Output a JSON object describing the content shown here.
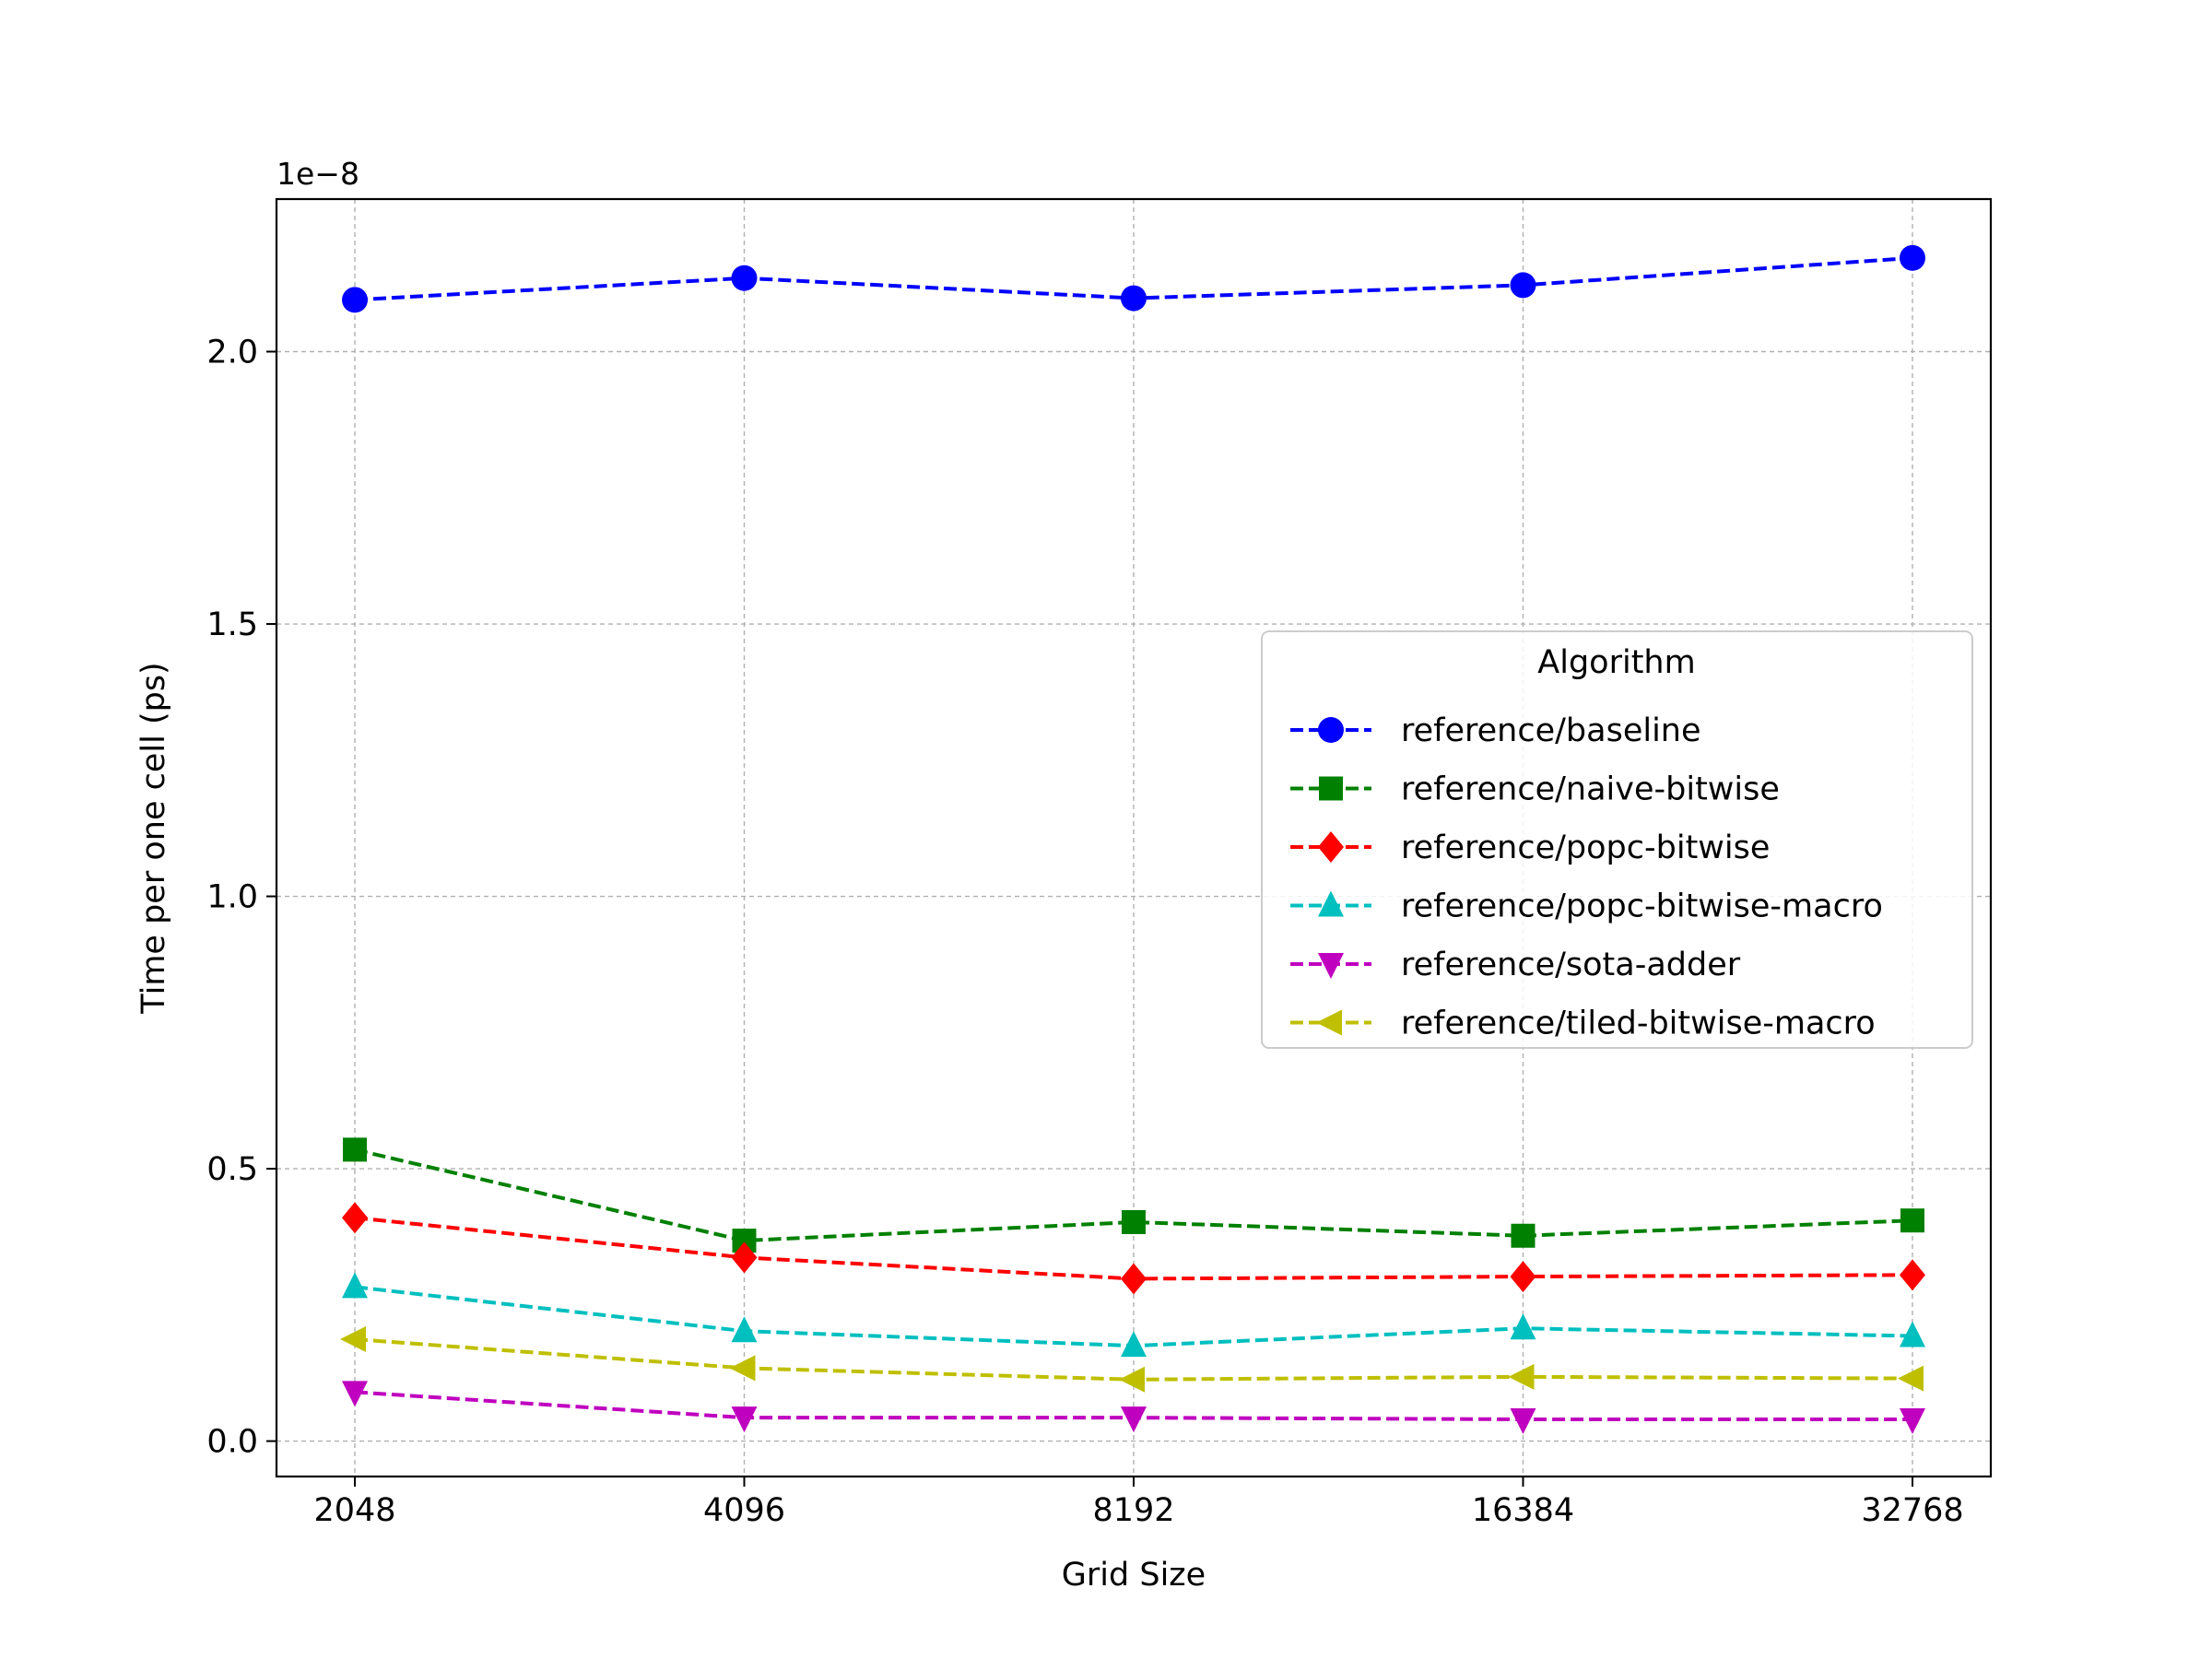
{
  "chart_data": {
    "type": "line",
    "title": "",
    "xlabel": "Grid Size",
    "ylabel": "Time per one cell (ps)",
    "y_offset_label": "1e−8",
    "categories": [
      "2048",
      "4096",
      "8192",
      "16384",
      "32768"
    ],
    "x_scale": "log2",
    "ylim": [
      -0.065,
      2.28
    ],
    "yticks": [
      0.0,
      0.5,
      1.0,
      1.5,
      2.0
    ],
    "ytick_labels": [
      "0.0",
      "0.5",
      "1.0",
      "1.5",
      "2.0"
    ],
    "grid": true,
    "line_style": "dashed",
    "legend": {
      "title": "Algorithm",
      "placement": "right-center"
    },
    "series": [
      {
        "name": "reference/baseline",
        "color": "#0000ff",
        "marker": "circle",
        "values": [
          2.095,
          2.135,
          2.098,
          2.122,
          2.172
        ]
      },
      {
        "name": "reference/naive-bitwise",
        "color": "#008000",
        "marker": "square",
        "values": [
          0.535,
          0.368,
          0.402,
          0.377,
          0.405
        ]
      },
      {
        "name": "reference/popc-bitwise",
        "color": "#ff0000",
        "marker": "diamond",
        "values": [
          0.41,
          0.337,
          0.298,
          0.302,
          0.305
        ]
      },
      {
        "name": "reference/popc-bitwise-macro",
        "color": "#00bfbf",
        "marker": "triangle-up",
        "values": [
          0.283,
          0.202,
          0.175,
          0.207,
          0.193
        ]
      },
      {
        "name": "reference/sota-adder",
        "color": "#bf00bf",
        "marker": "triangle-down",
        "values": [
          0.09,
          0.043,
          0.043,
          0.04,
          0.04
        ]
      },
      {
        "name": "reference/tiled-bitwise-macro",
        "color": "#bfbf00",
        "marker": "triangle-left",
        "values": [
          0.187,
          0.134,
          0.113,
          0.118,
          0.115
        ]
      }
    ]
  }
}
